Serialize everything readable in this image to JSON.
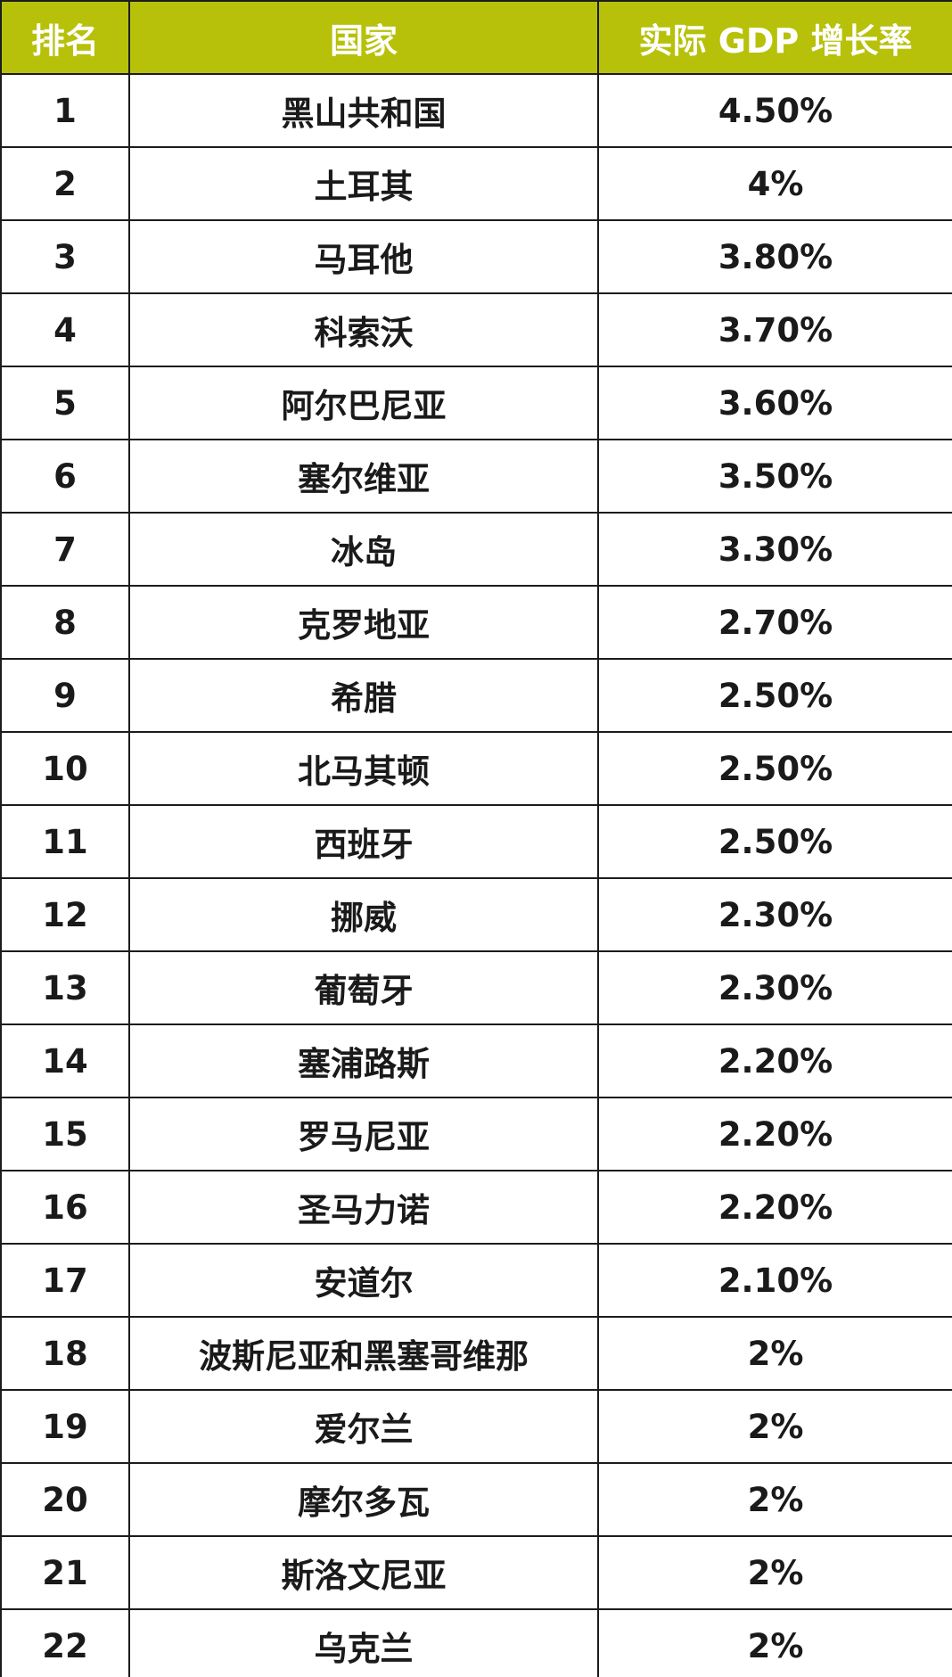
{
  "colors": {
    "header_background": "#b7c10a",
    "header_text": "#ffffff",
    "body_text": "#1a1a1a",
    "border": "#1c1c1c"
  },
  "table": {
    "headers": {
      "rank": "排名",
      "country": "国家",
      "gdp_growth": "实际 GDP 增长率"
    },
    "rows": [
      {
        "rank": "1",
        "country": "黑山共和国",
        "gdp": "4.50%"
      },
      {
        "rank": "2",
        "country": "土耳其",
        "gdp": "4%"
      },
      {
        "rank": "3",
        "country": "马耳他",
        "gdp": "3.80%"
      },
      {
        "rank": "4",
        "country": "科索沃",
        "gdp": "3.70%"
      },
      {
        "rank": "5",
        "country": "阿尔巴尼亚",
        "gdp": "3.60%"
      },
      {
        "rank": "6",
        "country": "塞尔维亚",
        "gdp": "3.50%"
      },
      {
        "rank": "7",
        "country": "冰岛",
        "gdp": "3.30%"
      },
      {
        "rank": "8",
        "country": "克罗地亚",
        "gdp": "2.70%"
      },
      {
        "rank": "9",
        "country": "希腊",
        "gdp": "2.50%"
      },
      {
        "rank": "10",
        "country": "北马其顿",
        "gdp": "2.50%"
      },
      {
        "rank": "11",
        "country": "西班牙",
        "gdp": "2.50%"
      },
      {
        "rank": "12",
        "country": "挪威",
        "gdp": "2.30%"
      },
      {
        "rank": "13",
        "country": "葡萄牙",
        "gdp": "2.30%"
      },
      {
        "rank": "14",
        "country": "塞浦路斯",
        "gdp": "2.20%"
      },
      {
        "rank": "15",
        "country": "罗马尼亚",
        "gdp": "2.20%"
      },
      {
        "rank": "16",
        "country": "圣马力诺",
        "gdp": "2.20%"
      },
      {
        "rank": "17",
        "country": "安道尔",
        "gdp": "2.10%"
      },
      {
        "rank": "18",
        "country": "波斯尼亚和黑塞哥维那",
        "gdp": "2%"
      },
      {
        "rank": "19",
        "country": "爱尔兰",
        "gdp": "2%"
      },
      {
        "rank": "20",
        "country": "摩尔多瓦",
        "gdp": "2%"
      },
      {
        "rank": "21",
        "country": "斯洛文尼亚",
        "gdp": "2%"
      },
      {
        "rank": "22",
        "country": "乌克兰",
        "gdp": "2%"
      }
    ]
  }
}
